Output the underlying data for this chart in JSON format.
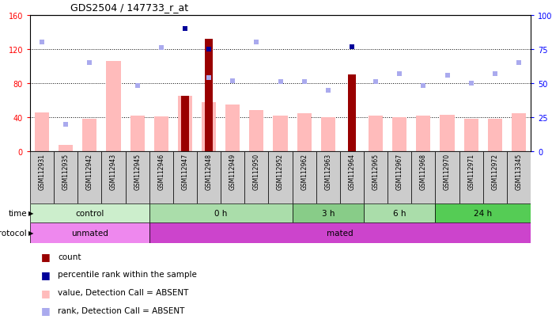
{
  "title": "GDS2504 / 147733_r_at",
  "samples": [
    "GSM112931",
    "GSM112935",
    "GSM112942",
    "GSM112943",
    "GSM112945",
    "GSM112946",
    "GSM112947",
    "GSM112948",
    "GSM112949",
    "GSM112950",
    "GSM112952",
    "GSM112962",
    "GSM112963",
    "GSM112964",
    "GSM112965",
    "GSM112967",
    "GSM112968",
    "GSM112970",
    "GSM112971",
    "GSM112972",
    "GSM113345"
  ],
  "value_absent": [
    46,
    7,
    38,
    106,
    42,
    41,
    65,
    58,
    55,
    48,
    42,
    45,
    40,
    0,
    42,
    40,
    42,
    43,
    38,
    38,
    45
  ],
  "rank_absent": [
    80,
    20,
    65,
    0,
    48,
    76,
    0,
    54,
    52,
    80,
    51,
    51,
    45,
    0,
    51,
    57,
    48,
    56,
    50,
    57,
    65
  ],
  "count_red": [
    0,
    0,
    0,
    0,
    0,
    0,
    65,
    132,
    0,
    0,
    0,
    0,
    0,
    90,
    0,
    0,
    0,
    0,
    0,
    0,
    0
  ],
  "percentile_blue": [
    0,
    0,
    0,
    0,
    0,
    0,
    90,
    75,
    0,
    0,
    0,
    0,
    0,
    77,
    0,
    0,
    0,
    0,
    0,
    0,
    0
  ],
  "time_groups": [
    {
      "label": "control",
      "start": 0,
      "end": 5
    },
    {
      "label": "0 h",
      "start": 5,
      "end": 11
    },
    {
      "label": "3 h",
      "start": 11,
      "end": 14
    },
    {
      "label": "6 h",
      "start": 14,
      "end": 17
    },
    {
      "label": "24 h",
      "start": 17,
      "end": 21
    }
  ],
  "protocol_groups": [
    {
      "label": "unmated",
      "start": 0,
      "end": 5
    },
    {
      "label": "mated",
      "start": 5,
      "end": 21
    }
  ],
  "time_colors": {
    "control": "#cceecc",
    "0 h": "#aaddaa",
    "3 h": "#88cc88",
    "6 h": "#aaddaa",
    "24 h": "#55cc55"
  },
  "proto_colors": {
    "unmated": "#ee88ee",
    "mated": "#cc44cc"
  },
  "ylim_left": [
    0,
    160
  ],
  "ylim_right": [
    0,
    100
  ],
  "yticks_left": [
    0,
    40,
    80,
    120,
    160
  ],
  "ytick_labels_left": [
    "0",
    "40",
    "80",
    "120",
    "160"
  ],
  "yticks_right": [
    0,
    25,
    50,
    75,
    100
  ],
  "ytick_labels_right": [
    "0",
    "25",
    "50",
    "75",
    "100%"
  ],
  "color_value_absent": "#ffbbbb",
  "color_rank_absent": "#aaaaee",
  "color_count": "#990000",
  "color_percentile": "#000099",
  "bar_width": 0.6,
  "tick_bg_color": "#cccccc"
}
